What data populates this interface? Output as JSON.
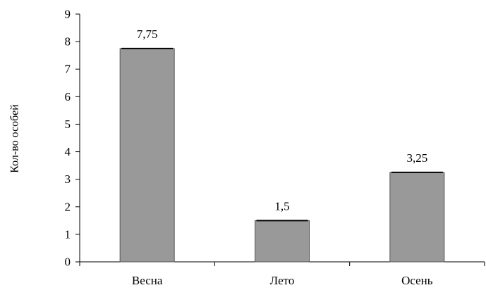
{
  "chart_data": {
    "type": "bar",
    "categories": [
      "Весна",
      "Лето",
      "Осень"
    ],
    "values": [
      7.75,
      1.5,
      3.25
    ],
    "data_labels": [
      "7,75",
      "1,5",
      "3,25"
    ],
    "title": "",
    "xlabel": "",
    "ylabel": "Кол-во особей",
    "ylim": [
      0,
      9
    ],
    "yticks": [
      0,
      1,
      2,
      3,
      4,
      5,
      6,
      7,
      8,
      9
    ],
    "grid": false,
    "legend": "none",
    "colors": {
      "bar_fill": "#999999",
      "bar_stroke": "#555555",
      "axis": "#000000",
      "error_cap": "#000000"
    }
  }
}
